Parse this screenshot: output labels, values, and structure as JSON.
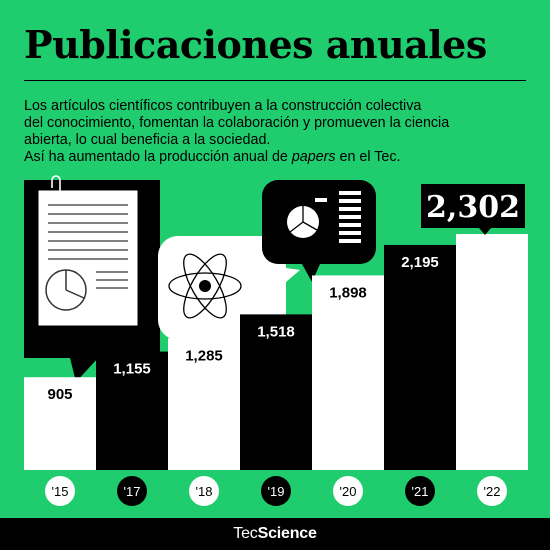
{
  "header": {
    "title": "Publicaciones anuales",
    "description_lines": [
      "Los artículos científicos contribuyen a la construcción colectiva",
      "del conocimiento, fomentan la colaboración y promueven la ciencia",
      "abierta, lo cual beneficia a la sociedad."
    ],
    "description_last_before": "Así ha aumentado la producción anual de ",
    "description_last_italic": "papers",
    "description_last_after": " en el Tec."
  },
  "chart_data": {
    "type": "bar",
    "title": "Publicaciones anuales",
    "categories": [
      "'15",
      "'17",
      "'18",
      "'19",
      "'20",
      "'21",
      "'22"
    ],
    "labels": [
      "905",
      "1,155",
      "1,285",
      "1,518",
      "1,898",
      "2,195",
      "2,302"
    ],
    "values": [
      905,
      1155,
      1285,
      1518,
      1898,
      2195,
      2302
    ],
    "bar_colors": [
      "#ffffff",
      "#000000",
      "#ffffff",
      "#000000",
      "#ffffff",
      "#000000",
      "#ffffff"
    ],
    "grid": false,
    "legend": "none"
  },
  "footer": {
    "brand_regular": "Tec",
    "brand_bold": "Science"
  },
  "icons": [
    "paper-document-icon",
    "pie-chart-icon",
    "atom-icon",
    "pie-chart-list-icon"
  ],
  "colors": {
    "background": "#1fcc6e",
    "dark": "#000000",
    "light": "#ffffff"
  }
}
